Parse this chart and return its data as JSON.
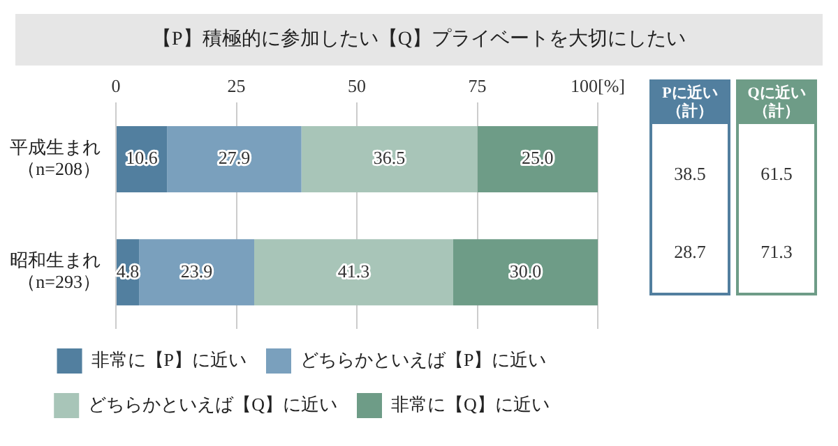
{
  "chart_data": {
    "type": "bar",
    "orientation": "horizontal",
    "stacked": true,
    "title": "【P】積極的に参加したい【Q】プライベートを大切にしたい",
    "categories": [
      "平成生まれ（n=208）",
      "昭和生まれ（n=293）"
    ],
    "series": [
      {
        "name": "非常に【P】に近い",
        "color": "#527f9f",
        "values": [
          10.6,
          4.8
        ],
        "value_labels": [
          "10.6",
          "4.8"
        ]
      },
      {
        "name": "どちらかといえば【P】に近い",
        "color": "#7aa0bd",
        "values": [
          27.9,
          23.9
        ],
        "value_labels": [
          "27.9",
          "23.9"
        ]
      },
      {
        "name": "どちらかといえば【Q】に近い",
        "color": "#a8c5b8",
        "values": [
          36.5,
          41.3
        ],
        "value_labels": [
          "36.5",
          "41.3"
        ]
      },
      {
        "name": "非常に【Q】に近い",
        "color": "#6e9c87",
        "values": [
          25.0,
          30.0
        ],
        "value_labels": [
          "25.0",
          "30.0"
        ]
      }
    ],
    "xlim": [
      0,
      100
    ],
    "xticks": [
      0,
      25,
      50,
      75,
      {
        "value": 100,
        "label": "100[%]"
      }
    ],
    "grid": "x",
    "legend": "bottom",
    "annotations": [
      "Pに近い（計）",
      "Qに近い（計）",
      "38.5",
      "61.5",
      "28.7",
      "71.3"
    ]
  }
}
